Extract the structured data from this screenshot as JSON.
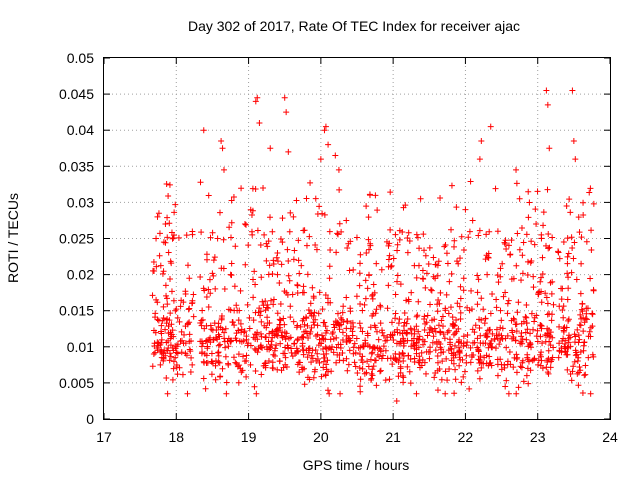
{
  "chart_data": {
    "type": "scatter",
    "title": "Day 302 of 2017, Rate Of TEC Index for receiver ajac",
    "xlabel": "GPS time / hours",
    "ylabel": "ROTI / TECUs",
    "xlim": [
      17,
      24
    ],
    "ylim": [
      0,
      0.05
    ],
    "xticks": [
      "17",
      "18",
      "19",
      "20",
      "21",
      "22",
      "23",
      "24"
    ],
    "yticks": [
      "0",
      "0.005",
      "0.01",
      "0.015",
      "0.02",
      "0.025",
      "0.03",
      "0.035",
      "0.04",
      "0.045",
      "0.05"
    ],
    "grid": true,
    "marker": "+",
    "color": "#ff0000",
    "segments": [
      {
        "x_start": 17.67,
        "x_end": 18.25
      },
      {
        "x_start": 18.33,
        "x_end": 20.32
      },
      {
        "x_start": 20.35,
        "x_end": 21.3
      },
      {
        "x_start": 21.32,
        "x_end": 22.38
      },
      {
        "x_start": 22.4,
        "x_end": 23.22
      },
      {
        "x_start": 23.28,
        "x_end": 23.78
      }
    ],
    "series": [
      {
        "values_sample": [
          [
            17.7,
            0.0105
          ],
          [
            17.72,
            0.025
          ],
          [
            17.74,
            0.028
          ],
          [
            17.76,
            0.0285
          ],
          [
            17.78,
            0.0075
          ],
          [
            17.8,
            0.0085
          ],
          [
            17.85,
            0.027
          ],
          [
            17.88,
            0.0035
          ],
          [
            17.92,
            0.012
          ],
          [
            17.96,
            0.0095
          ],
          [
            18.02,
            0.014
          ],
          [
            18.1,
            0.0105
          ],
          [
            18.18,
            0.0195
          ],
          [
            18.22,
            0.0075
          ],
          [
            18.38,
            0.04
          ],
          [
            18.45,
            0.011
          ],
          [
            18.52,
            0.022
          ],
          [
            18.62,
            0.0385
          ],
          [
            18.64,
            0.0375
          ],
          [
            18.66,
            0.0345
          ],
          [
            18.72,
            0.0075
          ],
          [
            18.8,
            0.013
          ],
          [
            18.9,
            0.0065
          ],
          [
            18.95,
            0.027
          ],
          [
            19.05,
            0.0255
          ],
          [
            19.1,
            0.044
          ],
          [
            19.12,
            0.0445
          ],
          [
            19.15,
            0.041
          ],
          [
            19.2,
            0.032
          ],
          [
            19.3,
            0.0375
          ],
          [
            19.4,
            0.02
          ],
          [
            19.5,
            0.0445
          ],
          [
            19.52,
            0.0425
          ],
          [
            19.55,
            0.037
          ],
          [
            19.62,
            0.028
          ],
          [
            19.7,
            0.0065
          ],
          [
            19.8,
            0.0095
          ],
          [
            19.9,
            0.017
          ],
          [
            20.0,
            0.036
          ],
          [
            20.05,
            0.04
          ],
          [
            20.07,
            0.0405
          ],
          [
            20.1,
            0.038
          ],
          [
            20.2,
            0.0365
          ],
          [
            20.25,
            0.0345
          ],
          [
            20.4,
            0.0095
          ],
          [
            20.55,
            0.0055
          ],
          [
            20.68,
            0.031
          ],
          [
            20.8,
            0.011
          ],
          [
            20.95,
            0.0055
          ],
          [
            21.05,
            0.0025
          ],
          [
            21.15,
            0.0105
          ],
          [
            21.25,
            0.0175
          ],
          [
            21.38,
            0.0305
          ],
          [
            21.5,
            0.012
          ],
          [
            21.62,
            0.004
          ],
          [
            21.72,
            0.0035
          ],
          [
            21.8,
            0.0155
          ],
          [
            21.9,
            0.0215
          ],
          [
            22.0,
            0.029
          ],
          [
            22.1,
            0.0275
          ],
          [
            22.2,
            0.036
          ],
          [
            22.22,
            0.0385
          ],
          [
            22.3,
            0.02
          ],
          [
            22.35,
            0.0405
          ],
          [
            22.45,
            0.006
          ],
          [
            22.55,
            0.0045
          ],
          [
            22.65,
            0.012
          ],
          [
            22.7,
            0.0345
          ],
          [
            22.75,
            0.0305
          ],
          [
            22.85,
            0.006
          ],
          [
            22.95,
            0.0135
          ],
          [
            23.05,
            0.0255
          ],
          [
            23.12,
            0.0455
          ],
          [
            23.14,
            0.0435
          ],
          [
            23.16,
            0.0375
          ],
          [
            23.2,
            0.019
          ],
          [
            23.3,
            0.0095
          ],
          [
            23.4,
            0.0295
          ],
          [
            23.48,
            0.0455
          ],
          [
            23.5,
            0.0385
          ],
          [
            23.52,
            0.036
          ],
          [
            23.6,
            0.0215
          ],
          [
            23.7,
            0.0085
          ],
          [
            23.76,
            0.0145
          ]
        ]
      }
    ]
  }
}
